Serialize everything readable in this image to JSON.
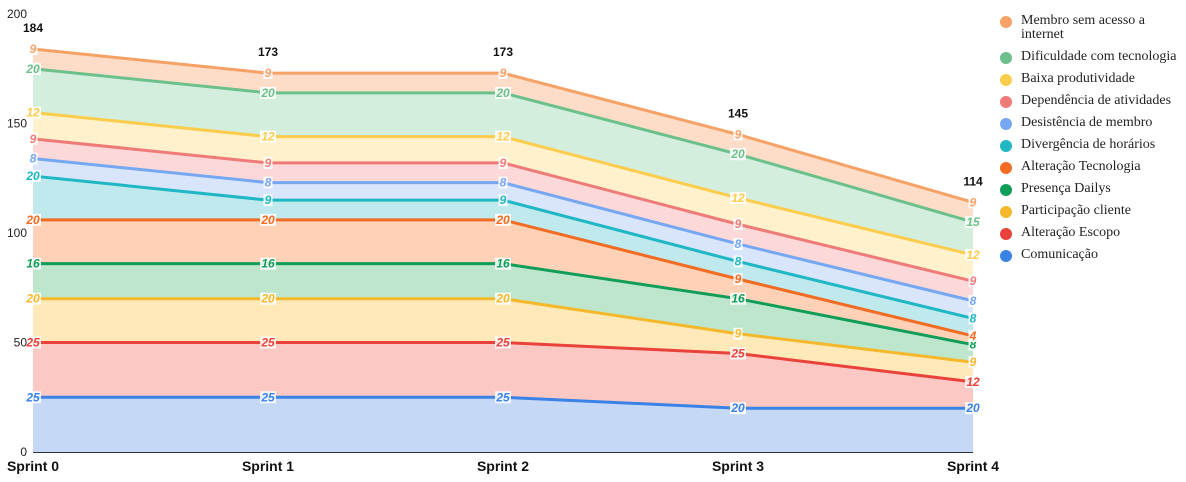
{
  "chart_data": {
    "type": "area",
    "stacked": true,
    "categories": [
      "Sprint 0",
      "Sprint 1",
      "Sprint 2",
      "Sprint 3",
      "Sprint 4"
    ],
    "totals": [
      184,
      173,
      173,
      145,
      114
    ],
    "ylim": [
      0,
      200
    ],
    "yticks": [
      0,
      50,
      100,
      150,
      200
    ],
    "legend_position": "right",
    "series": [
      {
        "name": "Comunicação",
        "color": "#3b82e6",
        "fill": "#c5d9f6",
        "values": [
          25,
          25,
          25,
          20,
          20
        ]
      },
      {
        "name": "Alteração Escopo",
        "color": "#e8423a",
        "fill": "#fcc8c4",
        "values": [
          25,
          25,
          25,
          25,
          12
        ]
      },
      {
        "name": "Participação cliente",
        "color": "#f4b82a",
        "fill": "#ffe9b8",
        "values": [
          20,
          20,
          20,
          9,
          9
        ]
      },
      {
        "name": "Presença Dailys",
        "color": "#0f9d58",
        "fill": "#bde6cd",
        "values": [
          16,
          16,
          16,
          16,
          8
        ]
      },
      {
        "name": "Alteração Tecnologia",
        "color": "#f26b22",
        "fill": "#ffd2b8",
        "values": [
          20,
          20,
          20,
          9,
          4
        ]
      },
      {
        "name": "Divergência de horários",
        "color": "#1fb7c4",
        "fill": "#bfe9ec",
        "values": [
          20,
          9,
          9,
          8,
          8
        ]
      },
      {
        "name": "Desistência de membro",
        "color": "#76a7f2",
        "fill": "#d8e5fb",
        "values": [
          8,
          8,
          8,
          8,
          8
        ]
      },
      {
        "name": "Dependência de atividades",
        "color": "#ef7b78",
        "fill": "#fcd9d8",
        "values": [
          9,
          9,
          9,
          9,
          9
        ]
      },
      {
        "name": "Baixa produtividade",
        "color": "#fccc4d",
        "fill": "#fff1cc",
        "values": [
          12,
          12,
          12,
          12,
          12
        ]
      },
      {
        "name": "Dificuldade com tecnologia",
        "color": "#6cc08b",
        "fill": "#d3eedd",
        "values": [
          20,
          20,
          20,
          20,
          15
        ]
      },
      {
        "name": "Membro sem acesso a internet",
        "color": "#f6a266",
        "fill": "#fdddc8",
        "values": [
          9,
          9,
          9,
          9,
          9
        ]
      }
    ]
  },
  "legend_items": [
    {
      "label": "Membro sem acesso a internet",
      "color": "#f6a266"
    },
    {
      "label": "Dificuldade com tecnologia",
      "color": "#6cc08b"
    },
    {
      "label": "Baixa produtividade",
      "color": "#fccc4d"
    },
    {
      "label": "Dependência de atividades",
      "color": "#ef7b78"
    },
    {
      "label": "Desistência de membro",
      "color": "#76a7f2"
    },
    {
      "label": "Divergência de horários",
      "color": "#1fb7c4"
    },
    {
      "label": "Alteração Tecnologia",
      "color": "#f26b22"
    },
    {
      "label": "Presença Dailys",
      "color": "#0f9d58"
    },
    {
      "label": "Participação cliente",
      "color": "#f4b82a"
    },
    {
      "label": "Alteração Escopo",
      "color": "#e8423a"
    },
    {
      "label": "Comunicação",
      "color": "#3b82e6"
    }
  ]
}
